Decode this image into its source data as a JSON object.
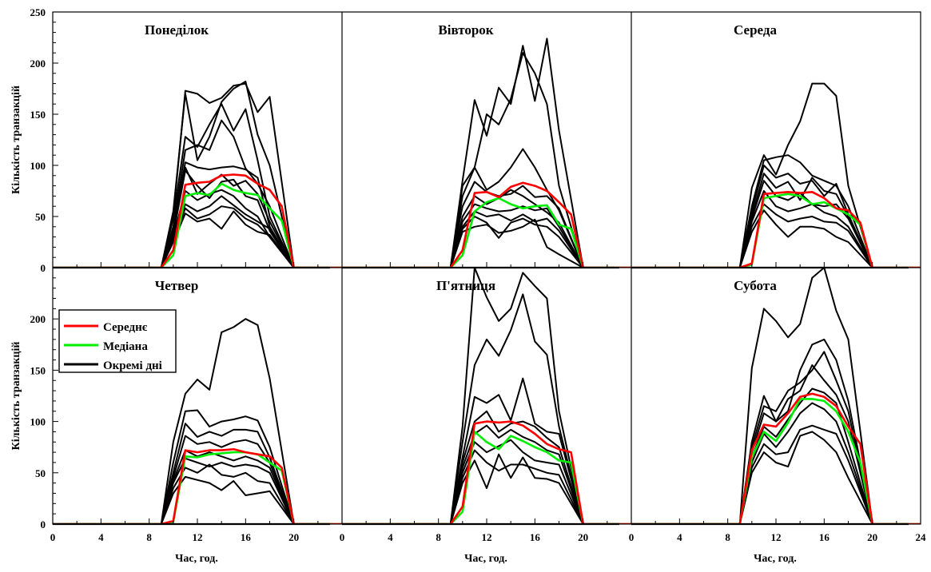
{
  "chart_data": {
    "type": "line",
    "layout": "2x3 grid of panels with shared axes",
    "x_axis": {
      "label": "Час, год.",
      "range": [
        0,
        24
      ],
      "panel_ranges": [
        [
          0,
          24
        ],
        [
          0,
          24
        ],
        [
          0,
          24
        ]
      ],
      "major_ticks": [
        0,
        4,
        8,
        12,
        16,
        20
      ],
      "last_tick": 24,
      "minor_step": 2
    },
    "y_axis": {
      "label": "Кількість транзакцій",
      "range": [
        0,
        250
      ],
      "major_ticks": [
        0,
        50,
        100,
        150,
        200,
        250
      ],
      "minor_step": 10
    },
    "grid": false,
    "legend": {
      "placement": "top-left of bottom-left panel",
      "entries": [
        {
          "name": "Середнє",
          "color": "#ff0000"
        },
        {
          "name": "Медіана",
          "color": "#00ee00"
        },
        {
          "name": "Окремі дні",
          "color": "#000000"
        }
      ]
    },
    "colors": {
      "mean": "#ff0000",
      "median": "#00ee00",
      "individual": "#000000"
    },
    "open_hours_x": [
      10,
      11,
      12,
      13,
      14,
      15,
      16,
      17,
      18,
      19
    ],
    "panels": [
      {
        "title": "Понеділок",
        "mean": [
          0,
          0,
          0,
          0,
          0,
          0,
          0,
          0,
          0,
          0,
          17,
          81,
          83,
          84,
          90,
          91,
          90,
          82,
          76,
          60,
          0,
          0,
          0,
          0,
          0
        ],
        "median": [
          0,
          0,
          0,
          0,
          0,
          0,
          0,
          0,
          0,
          0,
          12,
          70,
          73,
          71,
          82,
          76,
          73,
          71,
          58,
          46,
          0,
          0,
          0,
          0,
          0
        ],
        "individual": [
          [
            50,
            173,
            170,
            161,
            166,
            178,
            180,
            152,
            167
          ],
          [
            55,
            170,
            105,
            128,
            162,
            175,
            182,
            130,
            100
          ],
          [
            48,
            128,
            118,
            140,
            160,
            134,
            155,
            105,
            50
          ],
          [
            40,
            115,
            120,
            115,
            144,
            128,
            97,
            82,
            60
          ],
          [
            38,
            103,
            98,
            96,
            98,
            99,
            96,
            88,
            40
          ],
          [
            35,
            98,
            72,
            82,
            91,
            80,
            85,
            72,
            45
          ],
          [
            32,
            95,
            80,
            68,
            84,
            86,
            70,
            66,
            36
          ],
          [
            30,
            75,
            66,
            72,
            76,
            70,
            58,
            50,
            30
          ],
          [
            28,
            62,
            55,
            60,
            70,
            61,
            52,
            45,
            38
          ],
          [
            26,
            58,
            48,
            52,
            60,
            58,
            48,
            42,
            30
          ],
          [
            25,
            53,
            45,
            48,
            38,
            55,
            42,
            35,
            32
          ]
        ]
      },
      {
        "title": "Вівторок",
        "mean": [
          0,
          0,
          0,
          0,
          0,
          0,
          0,
          0,
          0,
          0,
          17,
          73,
          74,
          69,
          79,
          83,
          80,
          75,
          64,
          52,
          0,
          0,
          0,
          0,
          0
        ],
        "median": [
          0,
          0,
          0,
          0,
          0,
          0,
          0,
          0,
          0,
          0,
          12,
          55,
          64,
          68,
          62,
          58,
          60,
          61,
          42,
          38,
          0,
          0,
          0,
          0,
          0
        ],
        "individual": [
          [
            85,
            164,
            129,
            176,
            160,
            217,
            163,
            224,
            134
          ],
          [
            80,
            98,
            150,
            140,
            165,
            210,
            190,
            160,
            80
          ],
          [
            70,
            98,
            76,
            84,
            98,
            116,
            98,
            76,
            56
          ],
          [
            60,
            84,
            74,
            70,
            72,
            80,
            69,
            70,
            58
          ],
          [
            50,
            70,
            62,
            68,
            76,
            70,
            62,
            54,
            44
          ],
          [
            45,
            62,
            58,
            55,
            56,
            60,
            56,
            58,
            40
          ],
          [
            40,
            55,
            50,
            52,
            46,
            52,
            45,
            48,
            36
          ],
          [
            38,
            50,
            44,
            29,
            44,
            48,
            42,
            40,
            30
          ],
          [
            35,
            40,
            42,
            34,
            36,
            40,
            47,
            20,
            13
          ]
        ]
      },
      {
        "title": "Середа",
        "mean": [
          0,
          0,
          0,
          0,
          0,
          0,
          0,
          0,
          0,
          0,
          4,
          72,
          73,
          74,
          73,
          74,
          68,
          58,
          56,
          44,
          0,
          0,
          0,
          0,
          0
        ],
        "median": [
          0,
          0,
          0,
          0,
          0,
          0,
          0,
          0,
          0,
          0,
          3,
          68,
          70,
          72,
          70,
          62,
          64,
          58,
          52,
          42,
          0,
          0,
          0,
          0,
          0
        ],
        "individual": [
          [
            78,
            110,
            91,
            120,
            143,
            180,
            180,
            168,
            80
          ],
          [
            60,
            105,
            108,
            110,
            103,
            90,
            85,
            80,
            60
          ],
          [
            55,
            100,
            88,
            92,
            82,
            85,
            70,
            82,
            52
          ],
          [
            50,
            92,
            78,
            84,
            66,
            88,
            75,
            72,
            50
          ],
          [
            48,
            85,
            70,
            66,
            73,
            62,
            60,
            62,
            48
          ],
          [
            45,
            75,
            60,
            55,
            58,
            62,
            54,
            50,
            40
          ],
          [
            40,
            62,
            52,
            45,
            48,
            50,
            45,
            44,
            36
          ],
          [
            35,
            56,
            42,
            30,
            40,
            40,
            38,
            30,
            25
          ]
        ]
      },
      {
        "title": "Четвер",
        "mean": [
          0,
          0,
          0,
          0,
          0,
          0,
          0,
          0,
          0,
          0,
          3,
          72,
          70,
          72,
          72,
          73,
          70,
          68,
          66,
          55,
          0,
          0,
          0,
          0,
          0
        ],
        "median": [
          0,
          0,
          0,
          0,
          0,
          0,
          0,
          0,
          0,
          0,
          2,
          66,
          65,
          68,
          69,
          70,
          70,
          68,
          60,
          52,
          0,
          0,
          0,
          0,
          0
        ],
        "individual": [
          [
            80,
            127,
            141,
            131,
            187,
            192,
            200,
            194,
            142
          ],
          [
            60,
            110,
            111,
            95,
            100,
            102,
            105,
            101,
            75
          ],
          [
            50,
            98,
            85,
            90,
            86,
            92,
            92,
            90,
            65
          ],
          [
            45,
            86,
            78,
            80,
            75,
            80,
            82,
            78,
            60
          ],
          [
            42,
            72,
            66,
            70,
            66,
            62,
            66,
            62,
            55
          ],
          [
            40,
            64,
            60,
            56,
            60,
            56,
            58,
            56,
            50
          ],
          [
            35,
            55,
            50,
            58,
            48,
            46,
            50,
            42,
            40
          ],
          [
            30,
            46,
            43,
            40,
            33,
            42,
            28,
            30,
            32
          ]
        ]
      },
      {
        "title": "П'ятниця",
        "mean": [
          0,
          0,
          0,
          0,
          0,
          0,
          0,
          0,
          0,
          0,
          17,
          98,
          100,
          99,
          100,
          96,
          88,
          78,
          73,
          70,
          0,
          0,
          0,
          0,
          0
        ],
        "median": [
          0,
          0,
          0,
          0,
          0,
          0,
          0,
          0,
          0,
          0,
          12,
          90,
          80,
          73,
          86,
          81,
          75,
          70,
          62,
          60,
          0,
          0,
          0,
          0,
          0
        ],
        "individual": [
          [
            95,
            255,
            221,
            198,
            210,
            245,
            232,
            220,
            110
          ],
          [
            80,
            155,
            180,
            164,
            189,
            224,
            178,
            165,
            95
          ],
          [
            65,
            124,
            118,
            126,
            101,
            142,
            98,
            90,
            88
          ],
          [
            60,
            100,
            110,
            90,
            98,
            100,
            95,
            84,
            75
          ],
          [
            55,
            88,
            96,
            84,
            92,
            85,
            80,
            72,
            68
          ],
          [
            50,
            80,
            70,
            76,
            82,
            70,
            62,
            60,
            58
          ],
          [
            45,
            72,
            60,
            52,
            58,
            58,
            54,
            50,
            48
          ],
          [
            40,
            62,
            35,
            68,
            45,
            65,
            45,
            44,
            40
          ]
        ]
      },
      {
        "title": "Субота",
        "mean": [
          0,
          0,
          0,
          0,
          0,
          0,
          0,
          0,
          0,
          0,
          72,
          97,
          95,
          108,
          124,
          127,
          124,
          115,
          95,
          78,
          0,
          0,
          0,
          0,
          0
        ],
        "median": [
          0,
          0,
          0,
          0,
          0,
          0,
          0,
          0,
          0,
          0,
          65,
          90,
          81,
          99,
          122,
          122,
          120,
          110,
          90,
          60,
          0,
          0,
          0,
          0,
          0
        ],
        "individual": [
          [
            152,
            210,
            198,
            182,
            195,
            240,
            255,
            208,
            180
          ],
          [
            80,
            125,
            100,
            110,
            150,
            175,
            180,
            160,
            120
          ],
          [
            75,
            115,
            110,
            130,
            138,
            150,
            168,
            140,
            110
          ],
          [
            70,
            108,
            100,
            122,
            130,
            155,
            140,
            126,
            100
          ],
          [
            65,
            95,
            85,
            102,
            118,
            132,
            128,
            118,
            80
          ],
          [
            60,
            88,
            75,
            90,
            108,
            118,
            112,
            100,
            70
          ],
          [
            55,
            78,
            68,
            70,
            92,
            96,
            92,
            88,
            62
          ],
          [
            50,
            70,
            60,
            56,
            86,
            90,
            82,
            70,
            45
          ]
        ]
      }
    ]
  }
}
